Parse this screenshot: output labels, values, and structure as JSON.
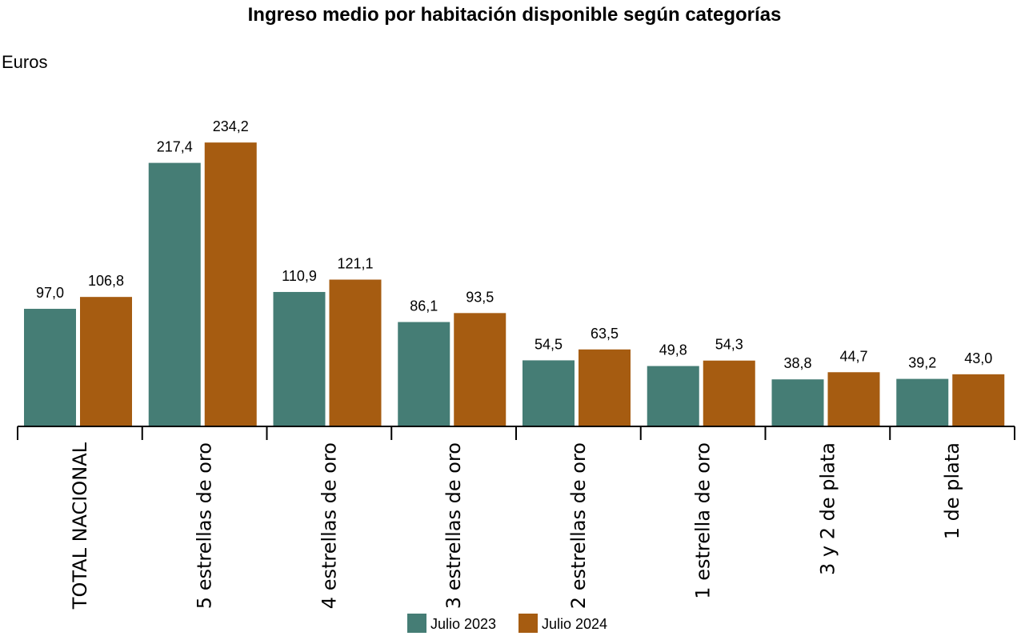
{
  "title": "Ingreso medio por habitación disponible según categorías",
  "unit_label": "Euros",
  "colors": {
    "series_2023": "#457d75",
    "series_2024": "#a65c11",
    "axis": "#000000"
  },
  "chart_data": {
    "type": "bar",
    "title": "Ingreso medio por habitación disponible según categorías",
    "ylabel": "Euros",
    "xlabel": "",
    "ylim": [
      0,
      250
    ],
    "grid": false,
    "legend": "bottom-center",
    "categories": [
      "TOTAL NACIONAL",
      "5 estrellas de oro",
      "4 estrellas de oro",
      "3 estrellas de oro",
      "2 estrellas de oro",
      "1 estrella de oro",
      "3 y 2 de plata",
      "1 de plata"
    ],
    "series": [
      {
        "name": "Julio 2023",
        "color": "#457d75",
        "values": [
          97.0,
          217.4,
          110.9,
          86.1,
          54.5,
          49.8,
          38.8,
          39.2
        ],
        "labels": [
          "97,0",
          "217,4",
          "110,9",
          "86,1",
          "54,5",
          "49,8",
          "38,8",
          "39,2"
        ]
      },
      {
        "name": "Julio 2024",
        "color": "#a65c11",
        "values": [
          106.8,
          234.2,
          121.1,
          93.5,
          63.5,
          54.3,
          44.7,
          43.0
        ],
        "labels": [
          "106,8",
          "234,2",
          "121,1",
          "93,5",
          "63,5",
          "54,3",
          "44,7",
          "43,0"
        ]
      }
    ]
  }
}
